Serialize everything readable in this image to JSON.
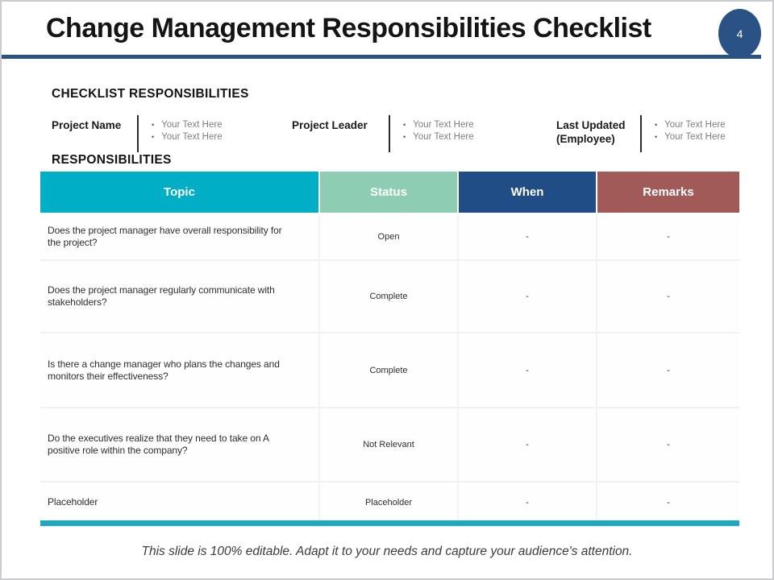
{
  "header": {
    "title": "Change Management Responsibilities Checklist",
    "page_number": "4"
  },
  "headings": {
    "checklist": "CHECKLIST RESPONSIBILITIES",
    "responsibilities": "RESPONSIBILITIES"
  },
  "info_fields": [
    {
      "label": "Project Name",
      "bullets": [
        "Your Text Here",
        "Your Text Here"
      ]
    },
    {
      "label": "Project Leader",
      "bullets": [
        "Your Text Here",
        "Your Text Here"
      ]
    },
    {
      "label": "Last Updated (Employee)",
      "bullets": [
        "Your Text Here",
        "Your Text Here"
      ]
    }
  ],
  "table": {
    "columns": [
      {
        "label": "Topic",
        "color": "#00aec6"
      },
      {
        "label": "Status",
        "color": "#8ccdb4"
      },
      {
        "label": "When",
        "color": "#204d85"
      },
      {
        "label": "Remarks",
        "color": "#a15a58"
      }
    ],
    "rows": [
      {
        "topic": "Does the project manager have overall responsibility for the project?",
        "status": "Open",
        "when": "-",
        "remarks": "-"
      },
      {
        "topic": "Does the project manager regularly communicate with stakeholders?",
        "status": "Complete",
        "when": "-",
        "remarks": "-"
      },
      {
        "topic": "Is there a change manager who plans the changes and monitors their effectiveness?",
        "status": "Complete",
        "when": "-",
        "remarks": "-"
      },
      {
        "topic": "Do the executives realize that they need to take on A positive role within the company?",
        "status": "Not Relevant",
        "when": "-",
        "remarks": "-"
      },
      {
        "topic": "Placeholder",
        "status": "Placeholder",
        "when": "-",
        "remarks": "-"
      }
    ]
  },
  "footer": {
    "note": "This slide is 100% editable. Adapt it to your needs and capture your audience's attention."
  },
  "bullet_glyph": "•",
  "colors": {
    "accent_navy": "#2a5284",
    "bottom_bar_teal": "#1ea9be"
  }
}
